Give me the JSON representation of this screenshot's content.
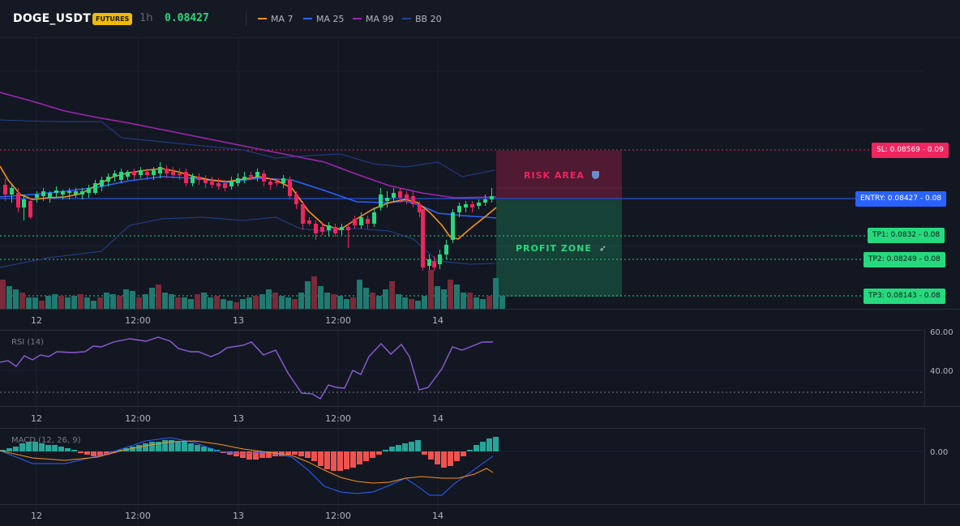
{
  "header": {
    "symbol": "DOGE_USDT",
    "badge": "FUTURES",
    "timeframe": "1h",
    "price": "0.08427",
    "legend": [
      {
        "label": "MA 7",
        "color": "#f7931a"
      },
      {
        "label": "MA 25",
        "color": "#2962ff"
      },
      {
        "label": "MA 99",
        "color": "#9c27b0"
      },
      {
        "label": "BB 20",
        "color": "#26408b"
      }
    ]
  },
  "trade": {
    "sl": "SL: 0.08569 - 0.09",
    "entry": "ENTRY: 0.08427 - 0.08",
    "tp1": "TP1: 0.0832 - 0.08",
    "tp2": "TP2: 0.08249 - 0.08",
    "tp3": "TP3: 0.08143 - 0.08",
    "risk_label": "RISK AREA",
    "profit_label": "PROFIT ZONE"
  },
  "x_axis": [
    "12",
    "12:00",
    "13",
    "12:00",
    "14"
  ],
  "rsi": {
    "title": "RSI (14)",
    "ticks": [
      "60.00",
      "40.00"
    ]
  },
  "macd": {
    "title": "MACD (12, 26, 9)",
    "ticks": [
      "0.00"
    ]
  },
  "colors": {
    "up": "#26d97f",
    "down": "#f0245e",
    "vol_up": "#1f7a70",
    "vol_down": "#7a2a38",
    "risk": "#f0245e",
    "profit": "#26d97f"
  }
}
